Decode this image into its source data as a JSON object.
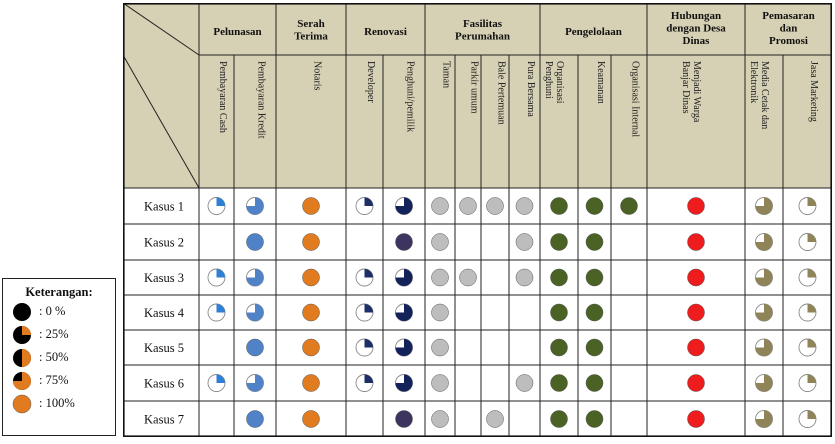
{
  "groups": [
    {
      "label": "Pelunasan",
      "subs": [
        "Pembayaran Cash",
        "Pembayaran Kredit"
      ]
    },
    {
      "label": "Serah\nTerima",
      "subs": [
        "Notaris"
      ]
    },
    {
      "label": "Renovasi",
      "subs": [
        "Developer",
        "Penghuni/pemilik"
      ]
    },
    {
      "label": "Fasilitas\nPerumahan",
      "subs": [
        "Taman",
        "Parkir umum",
        "Bale Pertemuan",
        "Pura Bersama"
      ]
    },
    {
      "label": "Pengelolaan",
      "subs": [
        "Organisasi\nPenghuni",
        "Keamanan",
        "Organisasi Internal"
      ]
    },
    {
      "label": "Hubungan\ndengan Desa\nDinas",
      "subs": [
        "Menjadi Warga\nBanjar Dinas"
      ]
    },
    {
      "label": "Pemasaran\ndan\nPromosi",
      "subs": [
        "Media Cetak dan\nElektronik",
        "Jasa Marketing"
      ]
    }
  ],
  "rows": [
    {
      "label": "Kasus 1",
      "cells": [
        {
          "level": 25,
          "color": "#2f7fd6"
        },
        {
          "level": 75,
          "color": "#4f82c7"
        },
        {
          "level": 100,
          "color": "#e07b1f"
        },
        {
          "level": 25,
          "color": "#1d2f66"
        },
        {
          "level": 75,
          "color": "#14225a"
        },
        {
          "level": 100,
          "color": "#bdbdbd"
        },
        {
          "level": 100,
          "color": "#bdbdbd"
        },
        {
          "level": 100,
          "color": "#bdbdbd"
        },
        {
          "level": 100,
          "color": "#bdbdbd"
        },
        {
          "level": 100,
          "color": "#4a6224"
        },
        {
          "level": 100,
          "color": "#4a6224"
        },
        {
          "level": 100,
          "color": "#4a6224"
        },
        {
          "level": 100,
          "color": "#ee1c1c"
        },
        {
          "level": 75,
          "color": "#8f8458"
        },
        {
          "level": 25,
          "color": "#8f8458"
        }
      ]
    },
    {
      "label": "Kasus 2",
      "cells": [
        null,
        {
          "level": 100,
          "color": "#4f82c7"
        },
        {
          "level": 100,
          "color": "#e07b1f"
        },
        null,
        {
          "level": 100,
          "color": "#3d3560"
        },
        {
          "level": 100,
          "color": "#bdbdbd"
        },
        null,
        null,
        {
          "level": 100,
          "color": "#bdbdbd"
        },
        {
          "level": 100,
          "color": "#4a6224"
        },
        {
          "level": 100,
          "color": "#4a6224"
        },
        null,
        {
          "level": 100,
          "color": "#ee1c1c"
        },
        {
          "level": 75,
          "color": "#8f8458"
        },
        {
          "level": 25,
          "color": "#8f8458"
        }
      ]
    },
    {
      "label": "Kasus 3",
      "cells": [
        {
          "level": 25,
          "color": "#2f7fd6"
        },
        {
          "level": 75,
          "color": "#4f82c7"
        },
        {
          "level": 100,
          "color": "#e07b1f"
        },
        {
          "level": 25,
          "color": "#1d2f66"
        },
        {
          "level": 75,
          "color": "#14225a"
        },
        {
          "level": 100,
          "color": "#bdbdbd"
        },
        {
          "level": 100,
          "color": "#bdbdbd"
        },
        null,
        {
          "level": 100,
          "color": "#bdbdbd"
        },
        {
          "level": 100,
          "color": "#4a6224"
        },
        {
          "level": 100,
          "color": "#4a6224"
        },
        null,
        {
          "level": 100,
          "color": "#ee1c1c"
        },
        {
          "level": 75,
          "color": "#8f8458"
        },
        {
          "level": 25,
          "color": "#8f8458"
        }
      ]
    },
    {
      "label": "Kasus 4",
      "cells": [
        {
          "level": 25,
          "color": "#2f7fd6"
        },
        {
          "level": 75,
          "color": "#4f82c7"
        },
        {
          "level": 100,
          "color": "#e07b1f"
        },
        {
          "level": 25,
          "color": "#1d2f66"
        },
        {
          "level": 75,
          "color": "#14225a"
        },
        {
          "level": 100,
          "color": "#bdbdbd"
        },
        null,
        null,
        null,
        {
          "level": 100,
          "color": "#4a6224"
        },
        {
          "level": 100,
          "color": "#4a6224"
        },
        null,
        {
          "level": 100,
          "color": "#ee1c1c"
        },
        {
          "level": 75,
          "color": "#8f8458"
        },
        {
          "level": 25,
          "color": "#8f8458"
        }
      ]
    },
    {
      "label": "Kasus 5",
      "cells": [
        null,
        {
          "level": 100,
          "color": "#4f82c7"
        },
        {
          "level": 100,
          "color": "#e07b1f"
        },
        {
          "level": 25,
          "color": "#1d2f66"
        },
        {
          "level": 75,
          "color": "#14225a"
        },
        {
          "level": 100,
          "color": "#bdbdbd"
        },
        null,
        null,
        null,
        {
          "level": 100,
          "color": "#4a6224"
        },
        {
          "level": 100,
          "color": "#4a6224"
        },
        null,
        {
          "level": 100,
          "color": "#ee1c1c"
        },
        {
          "level": 75,
          "color": "#8f8458"
        },
        {
          "level": 25,
          "color": "#8f8458"
        }
      ]
    },
    {
      "label": "Kasus 6",
      "cells": [
        {
          "level": 25,
          "color": "#2f7fd6"
        },
        {
          "level": 75,
          "color": "#4f82c7"
        },
        {
          "level": 100,
          "color": "#e07b1f"
        },
        {
          "level": 25,
          "color": "#1d2f66"
        },
        {
          "level": 75,
          "color": "#14225a"
        },
        {
          "level": 100,
          "color": "#bdbdbd"
        },
        null,
        null,
        {
          "level": 100,
          "color": "#bdbdbd"
        },
        {
          "level": 100,
          "color": "#4a6224"
        },
        {
          "level": 100,
          "color": "#4a6224"
        },
        null,
        {
          "level": 100,
          "color": "#ee1c1c"
        },
        {
          "level": 75,
          "color": "#8f8458"
        },
        {
          "level": 25,
          "color": "#8f8458"
        }
      ]
    },
    {
      "label": "Kasus 7",
      "cells": [
        null,
        {
          "level": 100,
          "color": "#4f82c7"
        },
        {
          "level": 100,
          "color": "#e07b1f"
        },
        null,
        {
          "level": 100,
          "color": "#3d3560"
        },
        {
          "level": 100,
          "color": "#bdbdbd"
        },
        null,
        {
          "level": 100,
          "color": "#bdbdbd"
        },
        null,
        {
          "level": 100,
          "color": "#4a6224"
        },
        {
          "level": 100,
          "color": "#4a6224"
        },
        null,
        {
          "level": 100,
          "color": "#ee1c1c"
        },
        {
          "level": 75,
          "color": "#8f8458"
        },
        {
          "level": 25,
          "color": "#8f8458"
        }
      ]
    }
  ],
  "legend": {
    "title": "Keterangan:",
    "color": "#e07b1f",
    "items": [
      {
        "level": 0,
        "label": ": 0 %"
      },
      {
        "level": 25,
        "label": ": 25%"
      },
      {
        "level": 50,
        "label": ": 50%"
      },
      {
        "level": 75,
        "label": ": 75%"
      },
      {
        "level": 100,
        "label": ": 100%"
      }
    ]
  },
  "colors": {
    "header_bg": "#d6d1b4",
    "grid": "#222222"
  }
}
